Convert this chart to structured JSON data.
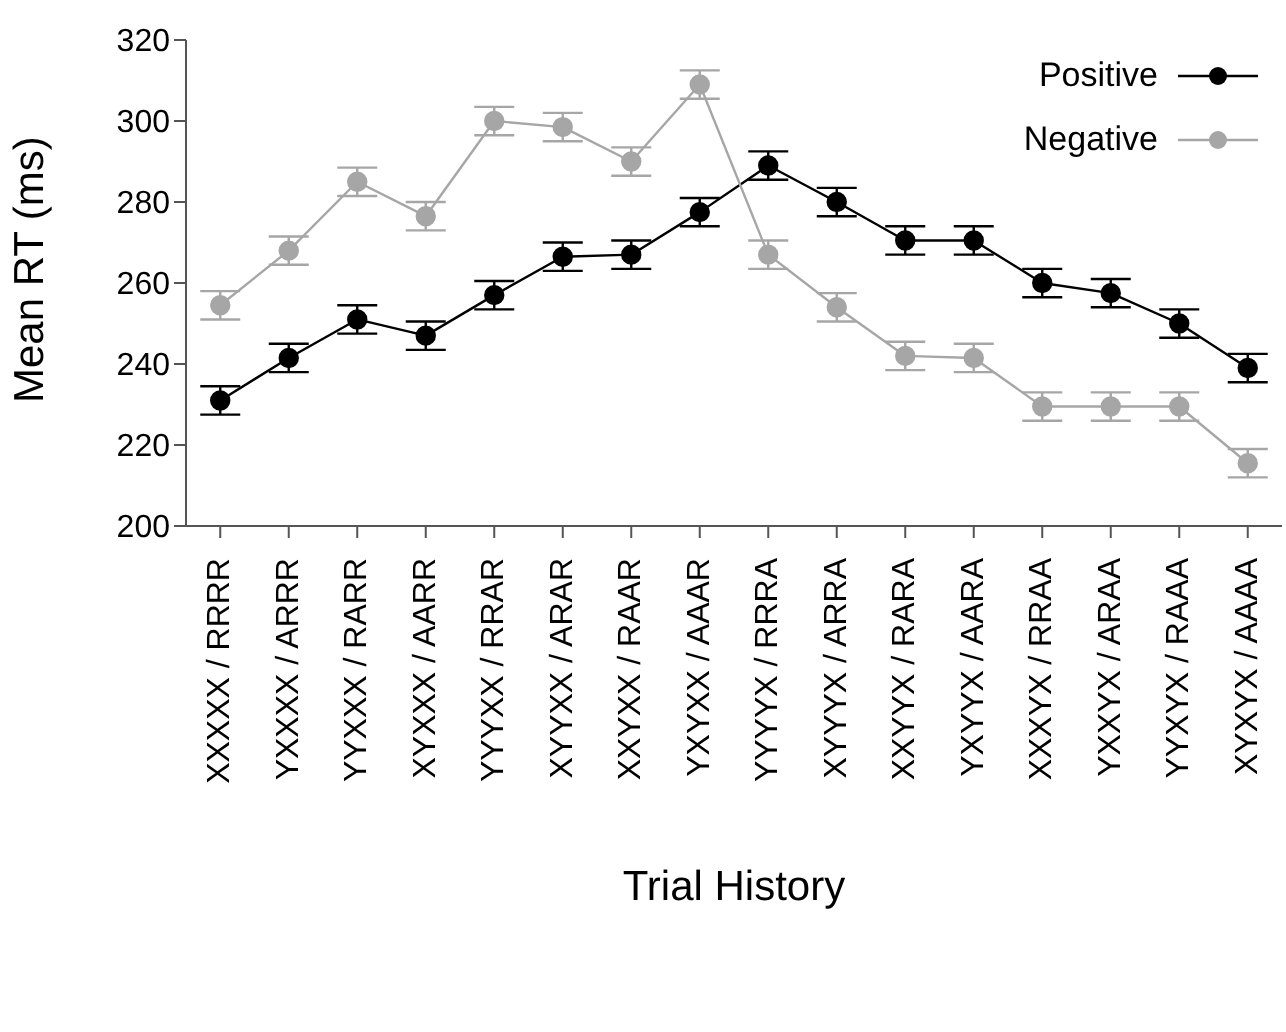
{
  "chart_data": {
    "type": "line",
    "xlabel": "Trial History",
    "ylabel": "Mean RT (ms)",
    "categories": [
      "XXXXX / RRRR",
      "YXXXX / ARRR",
      "YYXXX / RARR",
      "XYXXX / AARR",
      "YYYXX / RRAR",
      "XYYXX / ARAR",
      "XXYXX / RAAR",
      "YXYXX / AAAR",
      "YYYYX / RRRA",
      "XYYYX / ARRA",
      "XXYYX / RARA",
      "YXYYX / AARA",
      "XXXYX / RRAA",
      "YXXYX / ARAA",
      "YYXYX / RAAA",
      "XYXYX / AAAA"
    ],
    "series": [
      {
        "name": "Positive",
        "color": "#000000",
        "values": [
          231,
          241.5,
          251,
          247,
          257,
          266.5,
          267,
          277.5,
          289,
          280,
          270.5,
          270.5,
          260,
          257.5,
          250,
          239
        ],
        "errors": [
          3.5,
          3.5,
          3.5,
          3.5,
          3.5,
          3.5,
          3.5,
          3.5,
          3.5,
          3.5,
          3.5,
          3.5,
          3.5,
          3.5,
          3.5,
          3.5
        ]
      },
      {
        "name": "Negative",
        "color": "#a6a6a6",
        "values": [
          254.5,
          268,
          285,
          276.5,
          300,
          298.5,
          290,
          309,
          267,
          254,
          242,
          241.5,
          229.5,
          229.5,
          229.5,
          215.5
        ],
        "errors": [
          3.5,
          3.5,
          3.5,
          3.5,
          3.5,
          3.5,
          3.5,
          3.5,
          3.5,
          3.5,
          3.5,
          3.5,
          3.5,
          3.5,
          3.5,
          3.5
        ]
      }
    ],
    "ylim": [
      200,
      320
    ],
    "yticks": [
      200,
      220,
      240,
      260,
      280,
      300,
      320
    ],
    "grid": false,
    "legend": "top right",
    "marker": "circle",
    "line_style": "solid"
  }
}
